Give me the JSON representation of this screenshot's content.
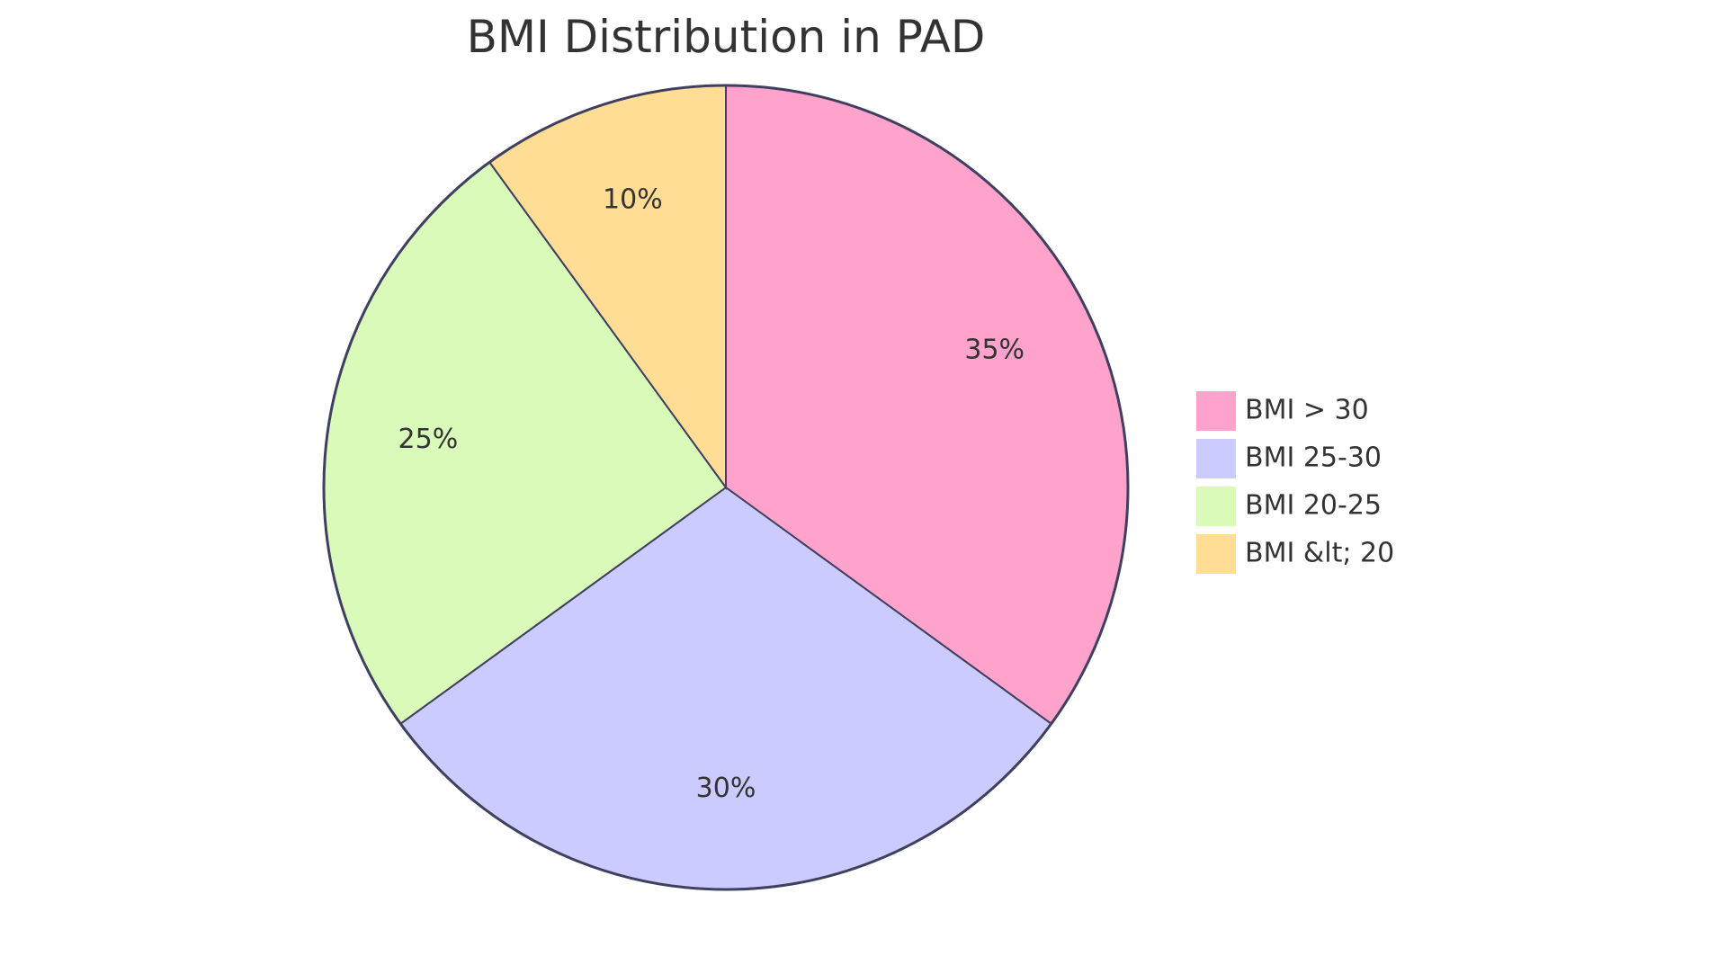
{
  "chart_data": {
    "type": "pie",
    "title": "BMI Distribution in PAD",
    "slices": [
      {
        "label": "BMI > 30",
        "value": 35,
        "display": "35%",
        "color": "#ffa3cc"
      },
      {
        "label": "BMI 25-30",
        "value": 30,
        "display": "30%",
        "color": "#cbcbff"
      },
      {
        "label": "BMI 20-25",
        "value": 25,
        "display": "25%",
        "color": "#dafab9"
      },
      {
        "label": "BMI &lt; 20",
        "value": 10,
        "display": "10%",
        "color": "#ffdd94"
      }
    ],
    "legend_position": "right"
  }
}
